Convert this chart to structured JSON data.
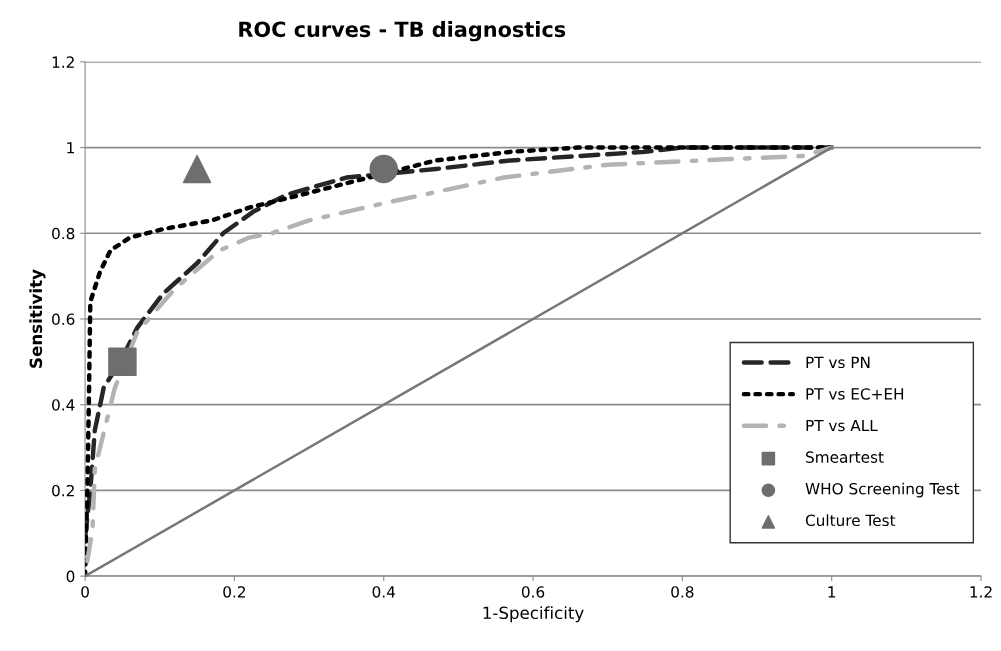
{
  "chart_data": {
    "type": "line",
    "title": "ROC curves - TB diagnostics",
    "xlabel": "1-Specificity",
    "ylabel": "Sensitivity",
    "xlim": [
      0,
      1.2
    ],
    "ylim": [
      0,
      1.2
    ],
    "xticks": [
      0,
      0.2,
      0.4,
      0.6,
      0.8,
      1,
      1.2
    ],
    "yticks": [
      0,
      0.2,
      0.4,
      0.6,
      0.8,
      1,
      1.2
    ],
    "grid": "y",
    "legend": "bottom right",
    "series": [
      {
        "name": "PT vs PN",
        "color": "#262626",
        "line_style": "dashed",
        "x": [
          0,
          0.007,
          0.013,
          0.025,
          0.047,
          0.07,
          0.105,
          0.15,
          0.185,
          0.225,
          0.27,
          0.35,
          0.38,
          0.47,
          0.57,
          0.66,
          0.75,
          0.8,
          1
        ],
        "values": [
          0.09,
          0.2,
          0.34,
          0.44,
          0.5,
          0.58,
          0.66,
          0.73,
          0.8,
          0.85,
          0.89,
          0.93,
          0.935,
          0.95,
          0.97,
          0.98,
          0.99,
          1.0,
          1.0
        ]
      },
      {
        "name": "PT vs EC+EH",
        "color": "#000000",
        "line_style": "dotted",
        "x": [
          0,
          0.003,
          0.005,
          0.007,
          0.02,
          0.034,
          0.06,
          0.105,
          0.17,
          0.22,
          0.29,
          0.38,
          0.47,
          0.57,
          0.66,
          1
        ],
        "values": [
          0,
          0.2,
          0.4,
          0.64,
          0.71,
          0.76,
          0.79,
          0.81,
          0.83,
          0.86,
          0.89,
          0.93,
          0.97,
          0.99,
          1.0,
          1.0
        ]
      },
      {
        "name": "PT vs ALL",
        "color": "#b3b3b3",
        "line_style": "dashdot",
        "x": [
          0.003,
          0.01,
          0.013,
          0.03,
          0.04,
          0.07,
          0.12,
          0.18,
          0.22,
          0.25,
          0.3,
          0.4,
          0.56,
          0.7,
          0.89,
          0.96,
          1
        ],
        "values": [
          0.035,
          0.11,
          0.25,
          0.37,
          0.44,
          0.57,
          0.67,
          0.76,
          0.79,
          0.8,
          0.83,
          0.87,
          0.93,
          0.96,
          0.975,
          0.98,
          1.0
        ]
      },
      {
        "name": "Smeartest",
        "type": "scatter",
        "marker": "square",
        "color": "#6e6e6e",
        "x": [
          0.05
        ],
        "values": [
          0.5
        ]
      },
      {
        "name": "WHO Screening Test",
        "type": "scatter",
        "marker": "circle",
        "color": "#6e6e6e",
        "x": [
          0.4
        ],
        "values": [
          0.95
        ]
      },
      {
        "name": "Culture Test",
        "type": "scatter",
        "marker": "triangle",
        "color": "#6e6e6e",
        "x": [
          0.15
        ],
        "values": [
          0.95
        ]
      },
      {
        "color": "#777777",
        "line_style": "solid",
        "x": [
          0,
          1
        ],
        "values": [
          0,
          1
        ]
      }
    ]
  }
}
